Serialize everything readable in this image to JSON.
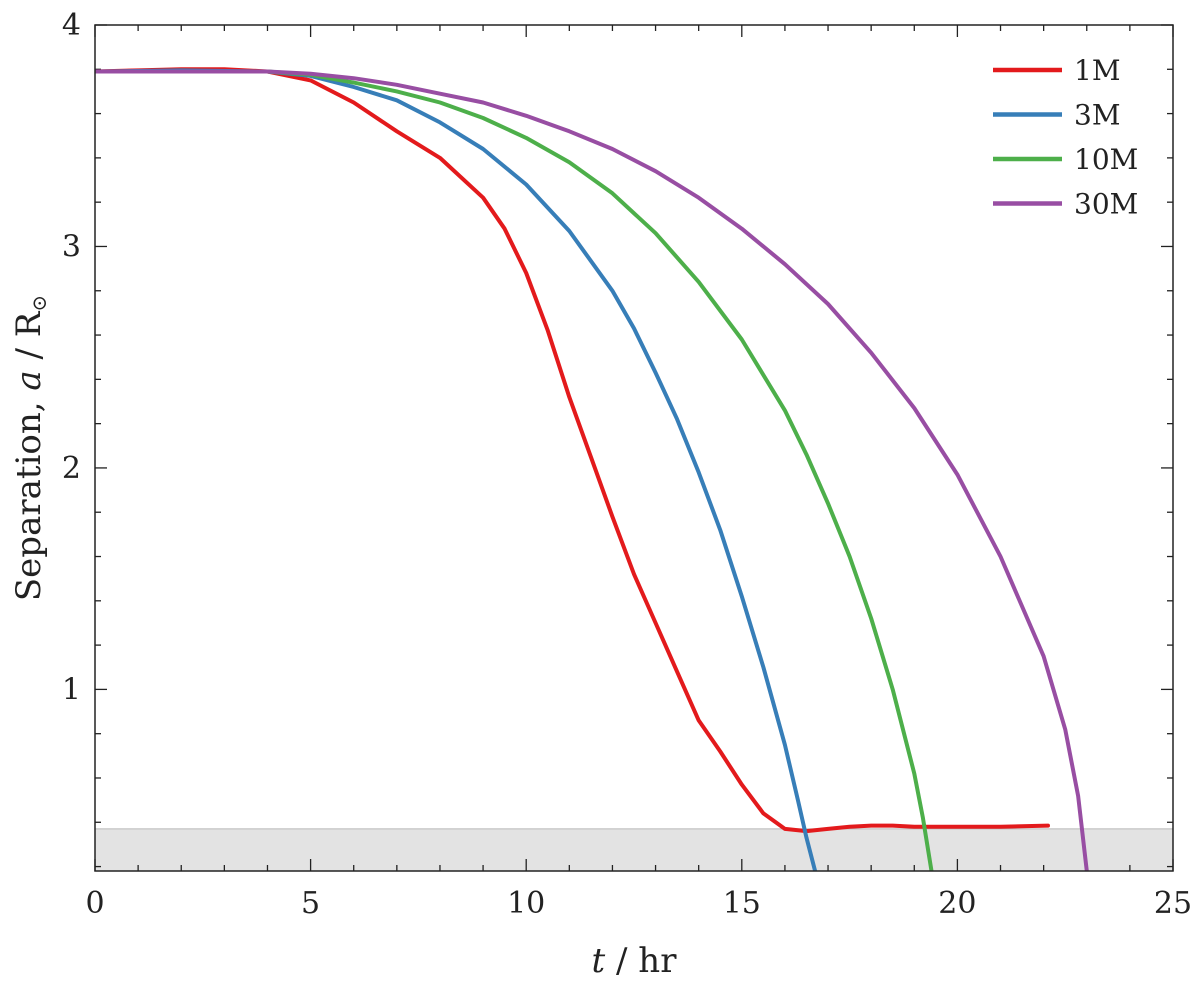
{
  "chart_data": {
    "type": "line",
    "xlabel": {
      "var": "t",
      "sep": " / ",
      "unit": "hr"
    },
    "ylabel": {
      "text": "Separation, ",
      "var": "a",
      "sep": " / ",
      "unit": "R",
      "unit_sub": "⊙"
    },
    "xlim": [
      0,
      25
    ],
    "ylim": [
      0.18,
      4
    ],
    "xticks": [
      0,
      5,
      10,
      15,
      20,
      25
    ],
    "yticks": [
      1,
      2,
      3,
      4
    ],
    "x_minor_step": 1,
    "y_minor_step": 0.2,
    "grid": false,
    "legend_position": "top-right",
    "shaded_band": {
      "y_from": 0.18,
      "y_to": 0.37,
      "color": "#e3e3e3"
    },
    "series": [
      {
        "name": "1M",
        "color": "#e31a1c",
        "points": [
          [
            0,
            3.79
          ],
          [
            1,
            3.795
          ],
          [
            2,
            3.8
          ],
          [
            3,
            3.8
          ],
          [
            4,
            3.79
          ],
          [
            5,
            3.75
          ],
          [
            6,
            3.65
          ],
          [
            7,
            3.52
          ],
          [
            8,
            3.4
          ],
          [
            9,
            3.22
          ],
          [
            9.5,
            3.08
          ],
          [
            10,
            2.88
          ],
          [
            10.5,
            2.62
          ],
          [
            11,
            2.32
          ],
          [
            11.5,
            2.05
          ],
          [
            12,
            1.78
          ],
          [
            12.5,
            1.52
          ],
          [
            13,
            1.3
          ],
          [
            13.5,
            1.08
          ],
          [
            14,
            0.86
          ],
          [
            14.5,
            0.72
          ],
          [
            15,
            0.57
          ],
          [
            15.5,
            0.44
          ],
          [
            16,
            0.37
          ],
          [
            16.5,
            0.36
          ],
          [
            17,
            0.37
          ],
          [
            17.5,
            0.38
          ],
          [
            18,
            0.385
          ],
          [
            18.5,
            0.385
          ],
          [
            19,
            0.38
          ],
          [
            20,
            0.38
          ],
          [
            21,
            0.38
          ],
          [
            22.1,
            0.385
          ]
        ]
      },
      {
        "name": "3M",
        "color": "#377eb8",
        "points": [
          [
            0,
            3.79
          ],
          [
            2,
            3.795
          ],
          [
            4,
            3.79
          ],
          [
            5,
            3.77
          ],
          [
            6,
            3.72
          ],
          [
            7,
            3.66
          ],
          [
            8,
            3.56
          ],
          [
            9,
            3.44
          ],
          [
            10,
            3.28
          ],
          [
            11,
            3.07
          ],
          [
            12,
            2.8
          ],
          [
            12.5,
            2.63
          ],
          [
            13,
            2.43
          ],
          [
            13.5,
            2.22
          ],
          [
            14,
            1.98
          ],
          [
            14.5,
            1.72
          ],
          [
            15,
            1.42
          ],
          [
            15.5,
            1.1
          ],
          [
            16,
            0.75
          ],
          [
            16.3,
            0.5
          ],
          [
            16.5,
            0.33
          ],
          [
            16.7,
            0.18
          ]
        ]
      },
      {
        "name": "10M",
        "color": "#4daf4a",
        "points": [
          [
            0,
            3.79
          ],
          [
            2,
            3.79
          ],
          [
            4,
            3.79
          ],
          [
            5,
            3.775
          ],
          [
            6,
            3.74
          ],
          [
            7,
            3.7
          ],
          [
            8,
            3.65
          ],
          [
            9,
            3.58
          ],
          [
            10,
            3.49
          ],
          [
            11,
            3.38
          ],
          [
            12,
            3.24
          ],
          [
            13,
            3.06
          ],
          [
            14,
            2.84
          ],
          [
            15,
            2.58
          ],
          [
            16,
            2.26
          ],
          [
            16.5,
            2.06
          ],
          [
            17,
            1.84
          ],
          [
            17.5,
            1.6
          ],
          [
            18,
            1.32
          ],
          [
            18.5,
            1.0
          ],
          [
            19,
            0.62
          ],
          [
            19.2,
            0.42
          ],
          [
            19.4,
            0.18
          ]
        ]
      },
      {
        "name": "30M",
        "color": "#984ea3",
        "points": [
          [
            0,
            3.79
          ],
          [
            2,
            3.79
          ],
          [
            4,
            3.79
          ],
          [
            5,
            3.78
          ],
          [
            6,
            3.76
          ],
          [
            7,
            3.73
          ],
          [
            8,
            3.69
          ],
          [
            9,
            3.65
          ],
          [
            10,
            3.59
          ],
          [
            11,
            3.52
          ],
          [
            12,
            3.44
          ],
          [
            13,
            3.34
          ],
          [
            14,
            3.22
          ],
          [
            15,
            3.08
          ],
          [
            16,
            2.92
          ],
          [
            17,
            2.74
          ],
          [
            18,
            2.52
          ],
          [
            19,
            2.27
          ],
          [
            20,
            1.97
          ],
          [
            21,
            1.6
          ],
          [
            22,
            1.15
          ],
          [
            22.5,
            0.82
          ],
          [
            22.8,
            0.52
          ],
          [
            23.0,
            0.18
          ]
        ]
      }
    ]
  }
}
